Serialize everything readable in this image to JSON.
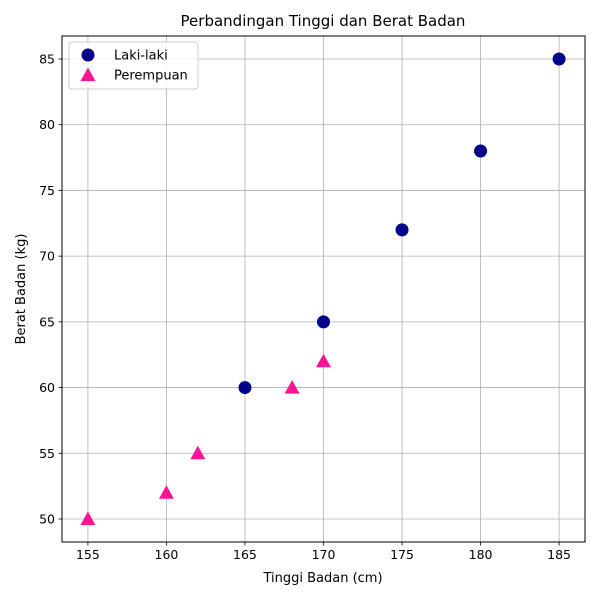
{
  "chart_data": {
    "type": "scatter",
    "title": "Perbandingan Tinggi dan Berat Badan",
    "xlabel": "Tinggi Badan (cm)",
    "ylabel": "Berat Badan (kg)",
    "xlim": [
      153.35,
      186.65
    ],
    "ylim": [
      48.25,
      86.75
    ],
    "xticks": [
      155,
      160,
      165,
      170,
      175,
      180,
      185
    ],
    "yticks": [
      50,
      55,
      60,
      65,
      70,
      75,
      80,
      85
    ],
    "grid": true,
    "legend_position": "upper-left",
    "series": [
      {
        "name": "Laki-laki",
        "marker": "circle",
        "color": "#00008b",
        "points": [
          [
            165,
            60
          ],
          [
            170,
            65
          ],
          [
            175,
            72
          ],
          [
            180,
            78
          ],
          [
            185,
            85
          ]
        ]
      },
      {
        "name": "Perempuan",
        "marker": "triangle",
        "color": "#ff1493",
        "points": [
          [
            155,
            50
          ],
          [
            160,
            52
          ],
          [
            162,
            55
          ],
          [
            168,
            60
          ],
          [
            170,
            62
          ]
        ]
      }
    ]
  }
}
